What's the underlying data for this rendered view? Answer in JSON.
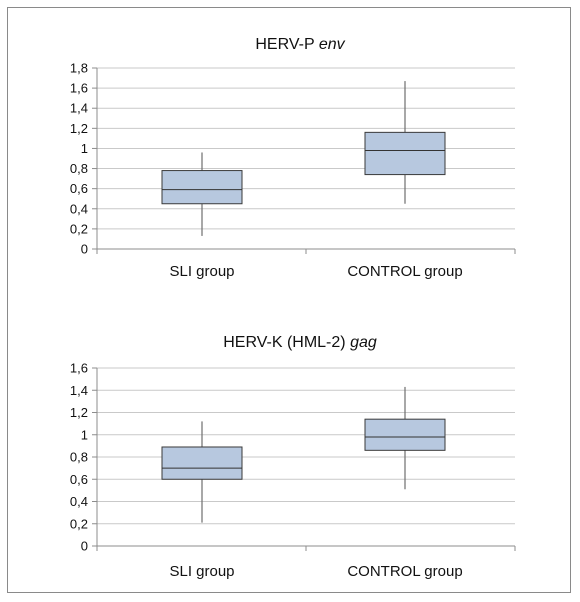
{
  "chart_data": [
    {
      "type": "box",
      "title_main": "HERV-P ",
      "title_italic": "env",
      "categories": [
        "SLI group",
        "CONTROL group"
      ],
      "ylim": [
        0,
        1.8
      ],
      "yticks": [
        "0",
        "0,2",
        "0,4",
        "0,6",
        "0,8",
        "1",
        "1,2",
        "1,4",
        "1,6",
        "1,8"
      ],
      "grid": true,
      "colors": {
        "box": "#b7c8df",
        "grid": "#c9c9c9"
      },
      "series": [
        {
          "category": "SLI group",
          "min": 0.13,
          "q1": 0.45,
          "median": 0.59,
          "q3": 0.78,
          "max": 0.96
        },
        {
          "category": "CONTROL group",
          "min": 0.45,
          "q1": 0.74,
          "median": 0.98,
          "q3": 1.16,
          "max": 1.67
        }
      ]
    },
    {
      "type": "box",
      "title_main": "HERV-K (HML-2) ",
      "title_italic": "gag",
      "categories": [
        "SLI group",
        "CONTROL group"
      ],
      "ylim": [
        0,
        1.6
      ],
      "yticks": [
        "0",
        "0,2",
        "0,4",
        "0,6",
        "0,8",
        "1",
        "1,2",
        "1,4",
        "1,6"
      ],
      "grid": true,
      "colors": {
        "box": "#b7c8df",
        "grid": "#c9c9c9"
      },
      "series": [
        {
          "category": "SLI group",
          "min": 0.21,
          "q1": 0.6,
          "median": 0.7,
          "q3": 0.89,
          "max": 1.12
        },
        {
          "category": "CONTROL group",
          "min": 0.51,
          "q1": 0.86,
          "median": 0.98,
          "q3": 1.14,
          "max": 1.43
        }
      ]
    }
  ]
}
